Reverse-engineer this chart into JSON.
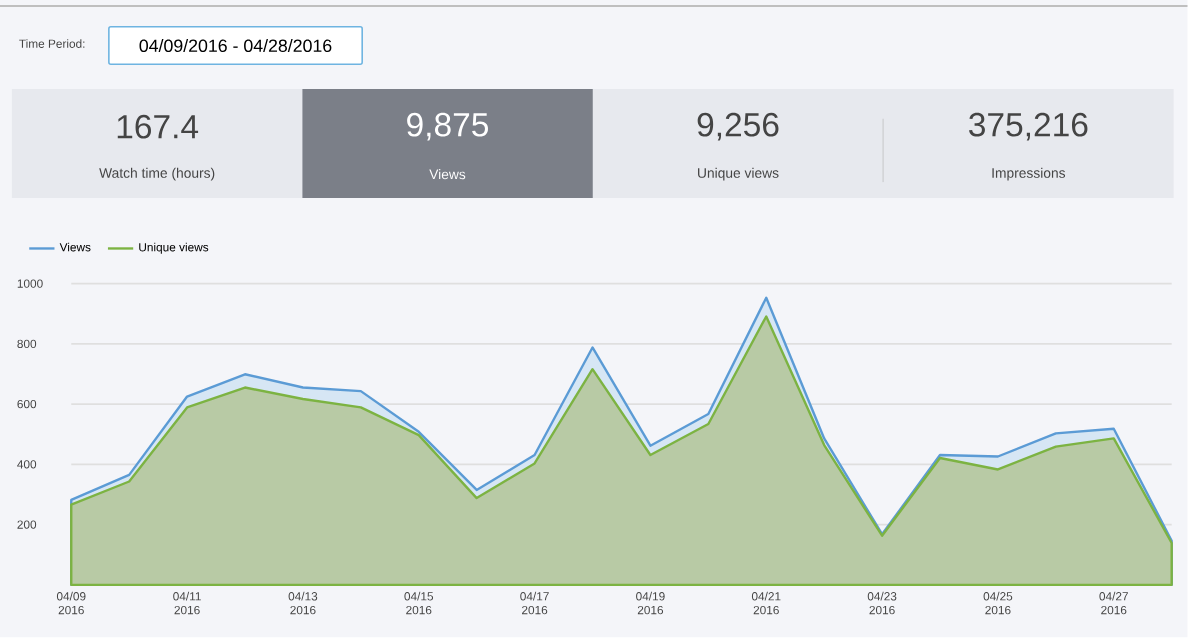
{
  "chart_data": {
    "type": "area",
    "categories": [
      "04/09 2016",
      null,
      "04/11 2016",
      null,
      "04/13 2016",
      null,
      "04/15 2016",
      null,
      "04/17 2016",
      null,
      "04/19 2016",
      null,
      "04/21 2016",
      null,
      "04/23 2016",
      null,
      "04/25 2016",
      null,
      "04/27 2016",
      null
    ],
    "series": [
      {
        "name": "Views",
        "color": "#5b9bd5",
        "values": [
          282,
          365,
          625,
          699,
          655,
          643,
          508,
          315,
          431,
          788,
          462,
          567,
          953,
          486,
          168,
          431,
          426,
          503,
          518,
          146
        ]
      },
      {
        "name": "Unique views",
        "color": "#7cb342",
        "values": [
          266,
          343,
          589,
          655,
          617,
          589,
          497,
          288,
          403,
          716,
          431,
          534,
          891,
          464,
          163,
          421,
          383,
          459,
          486,
          139
        ]
      }
    ],
    "ylim": [
      0,
      1000
    ],
    "yticks": [
      200,
      400,
      600,
      800,
      1000
    ],
    "grid": "y",
    "legend": "top left",
    "annotations": [
      "Time Period:",
      "04/09/2016 - 04/28/2016",
      "167.4",
      "Watch time (hours)",
      "9,875",
      "Views",
      "9,256",
      "Unique views",
      "375,216",
      "Impressions"
    ]
  }
}
